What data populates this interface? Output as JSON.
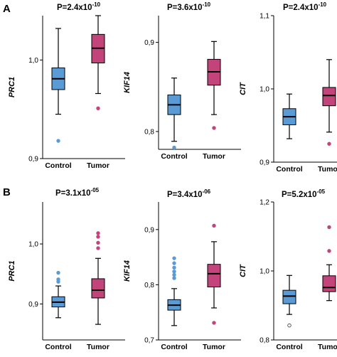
{
  "chart_data": [
    {
      "type": "box",
      "panel": "A",
      "pvalue": {
        "base": "P=2.4x10",
        "exp": "-10"
      },
      "ylabel": "PRC1",
      "ylim": [
        0.9,
        1.045
      ],
      "yticks": [
        0.9,
        1.0
      ],
      "ytick_labels": [
        "0,9",
        "1,0"
      ],
      "categories": [
        "Control",
        "Tumor"
      ],
      "boxes": [
        {
          "category": "Control",
          "color": "#5b9bd5",
          "whislo": 0.945,
          "q1": 0.97,
          "med": 0.981,
          "q3": 0.992,
          "whishi": 1.032,
          "outliers": [
            0.918
          ]
        },
        {
          "category": "Tumor",
          "color": "#c2447a",
          "whislo": 0.966,
          "q1": 0.997,
          "med": 1.012,
          "q3": 1.026,
          "whishi": 1.045,
          "outliers": [
            0.951
          ]
        }
      ]
    },
    {
      "type": "box",
      "panel": "A",
      "pvalue": {
        "base": "P=3.6x10",
        "exp": "-10"
      },
      "ylabel": "KIF14",
      "ylim": [
        0.78,
        0.93
      ],
      "yticks": [
        0.8,
        0.9
      ],
      "ytick_labels": [
        "0,8",
        "0,9"
      ],
      "categories": [
        "Control",
        "Tumor"
      ],
      "boxes": [
        {
          "category": "Control",
          "color": "#5b9bd5",
          "whislo": 0.789,
          "q1": 0.819,
          "med": 0.83,
          "q3": 0.841,
          "whishi": 0.86,
          "outliers": [
            0.782
          ]
        },
        {
          "category": "Tumor",
          "color": "#c2447a",
          "whislo": 0.819,
          "q1": 0.852,
          "med": 0.867,
          "q3": 0.881,
          "whishi": 0.901,
          "outliers": [
            0.804
          ]
        }
      ]
    },
    {
      "type": "box",
      "panel": "A",
      "pvalue": {
        "base": "P=2.4x10",
        "exp": "-10"
      },
      "ylabel": "CIT",
      "ylim": [
        0.9,
        1.1
      ],
      "yticks": [
        0.9,
        1.0,
        1.1
      ],
      "ytick_labels": [
        "0,9",
        "1,0",
        "1,1"
      ],
      "categories": [
        "Control",
        "Tumor"
      ],
      "boxes": [
        {
          "category": "Control",
          "color": "#5b9bd5",
          "whislo": 0.932,
          "q1": 0.951,
          "med": 0.962,
          "q3": 0.973,
          "whishi": 0.993,
          "outliers": []
        },
        {
          "category": "Tumor",
          "color": "#c2447a",
          "whislo": 0.941,
          "q1": 0.977,
          "med": 0.991,
          "q3": 1.002,
          "whishi": 1.04,
          "outliers": [
            0.925
          ]
        }
      ]
    },
    {
      "type": "box",
      "panel": "B",
      "pvalue": {
        "base": "P=3.1x10",
        "exp": "-05"
      },
      "ylabel": "PRC1",
      "ylim": [
        0.84,
        1.07
      ],
      "yticks": [
        0.9,
        1.0
      ],
      "ytick_labels": [
        "0,9",
        "1,0"
      ],
      "categories": [
        "Control",
        "Tumor"
      ],
      "boxes": [
        {
          "category": "Control",
          "color": "#5b9bd5",
          "whislo": 0.877,
          "q1": 0.895,
          "med": 0.903,
          "q3": 0.912,
          "whishi": 0.93,
          "outliers": [
            0.952,
            0.941,
            0.937
          ]
        },
        {
          "category": "Tumor",
          "color": "#c2447a",
          "whislo": 0.866,
          "q1": 0.91,
          "med": 0.923,
          "q3": 0.942,
          "whishi": 0.976,
          "outliers": [
            1.018,
            1.012,
            1.002,
            0.993
          ]
        }
      ]
    },
    {
      "type": "box",
      "panel": "B",
      "pvalue": {
        "base": "P=3.4x10",
        "exp": "-06"
      },
      "ylabel": "KIF14",
      "ylim": [
        0.7,
        0.95
      ],
      "yticks": [
        0.7,
        0.8,
        0.9
      ],
      "ytick_labels": [
        "0,7",
        "0,8",
        "0,9"
      ],
      "categories": [
        "Control",
        "Tumor"
      ],
      "boxes": [
        {
          "category": "Control",
          "color": "#5b9bd5",
          "whislo": 0.726,
          "q1": 0.754,
          "med": 0.763,
          "q3": 0.773,
          "whishi": 0.793,
          "outliers": [
            0.848,
            0.839,
            0.831,
            0.824,
            0.818,
            0.812
          ]
        },
        {
          "category": "Tumor",
          "color": "#c2447a",
          "whislo": 0.758,
          "q1": 0.796,
          "med": 0.82,
          "q3": 0.837,
          "whishi": 0.878,
          "outliers": [
            0.907,
            0.731
          ]
        }
      ]
    },
    {
      "type": "box",
      "panel": "B",
      "pvalue": {
        "base": "P=5.2x10",
        "exp": "-05"
      },
      "ylabel": "CIT",
      "ylim": [
        0.8,
        1.2
      ],
      "yticks": [
        0.8,
        1.0,
        1.2
      ],
      "ytick_labels": [
        "0,8",
        "1,0",
        "1,2"
      ],
      "categories": [
        "Control",
        "Tumor"
      ],
      "boxes": [
        {
          "category": "Control",
          "color": "#5b9bd5",
          "whislo": 0.874,
          "q1": 0.905,
          "med": 0.927,
          "q3": 0.944,
          "whishi": 0.987,
          "outliers": [
            0.842
          ]
        },
        {
          "category": "Tumor",
          "color": "#c2447a",
          "whislo": 0.914,
          "q1": 0.94,
          "med": 0.952,
          "q3": 0.986,
          "whishi": 1.018,
          "outliers": [
            1.127,
            1.058
          ]
        }
      ]
    }
  ],
  "panel_labels": [
    "A",
    "B"
  ]
}
